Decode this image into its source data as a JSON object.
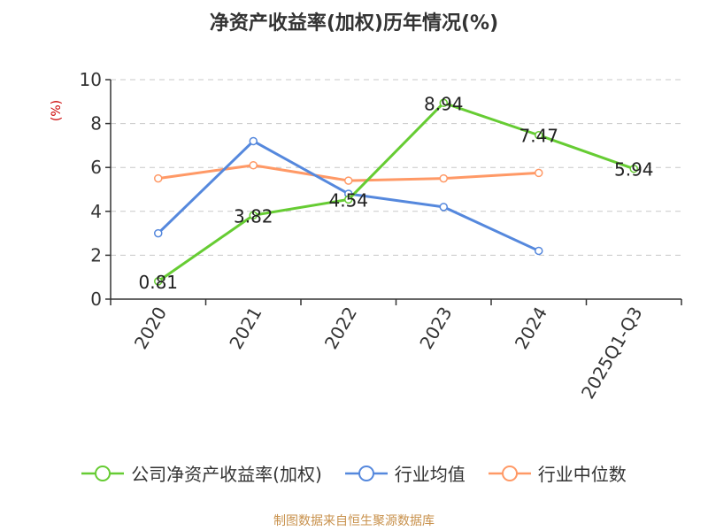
{
  "title": "净资产收益率(加权)历年情况(%)",
  "source": "制图数据来自恒生聚源数据库",
  "chart_data": {
    "type": "line",
    "title": "净资产收益率(加权)历年情况(%)",
    "ylabel": "(%)",
    "xlabel": "",
    "categories": [
      "2020",
      "2021",
      "2022",
      "2023",
      "2024",
      "2025Q1-Q3"
    ],
    "ylim": [
      0,
      10
    ],
    "yticks": [
      0,
      2,
      4,
      6,
      8,
      10
    ],
    "grid": true,
    "legend_position": "bottom",
    "series": [
      {
        "name": "公司净资产收益率(加权)",
        "color": "#66cc33",
        "values": [
          0.81,
          3.82,
          4.54,
          8.94,
          7.47,
          5.94
        ],
        "labels": [
          "0.81",
          "3.82",
          "4.54",
          "8.94",
          "7.47",
          "5.94"
        ]
      },
      {
        "name": "行业均值",
        "color": "#5588dd",
        "values": [
          3.0,
          7.2,
          4.8,
          4.2,
          2.2,
          null
        ]
      },
      {
        "name": "行业中位数",
        "color": "#ff9966",
        "values": [
          5.5,
          6.1,
          5.4,
          5.5,
          5.75,
          null
        ]
      }
    ]
  }
}
